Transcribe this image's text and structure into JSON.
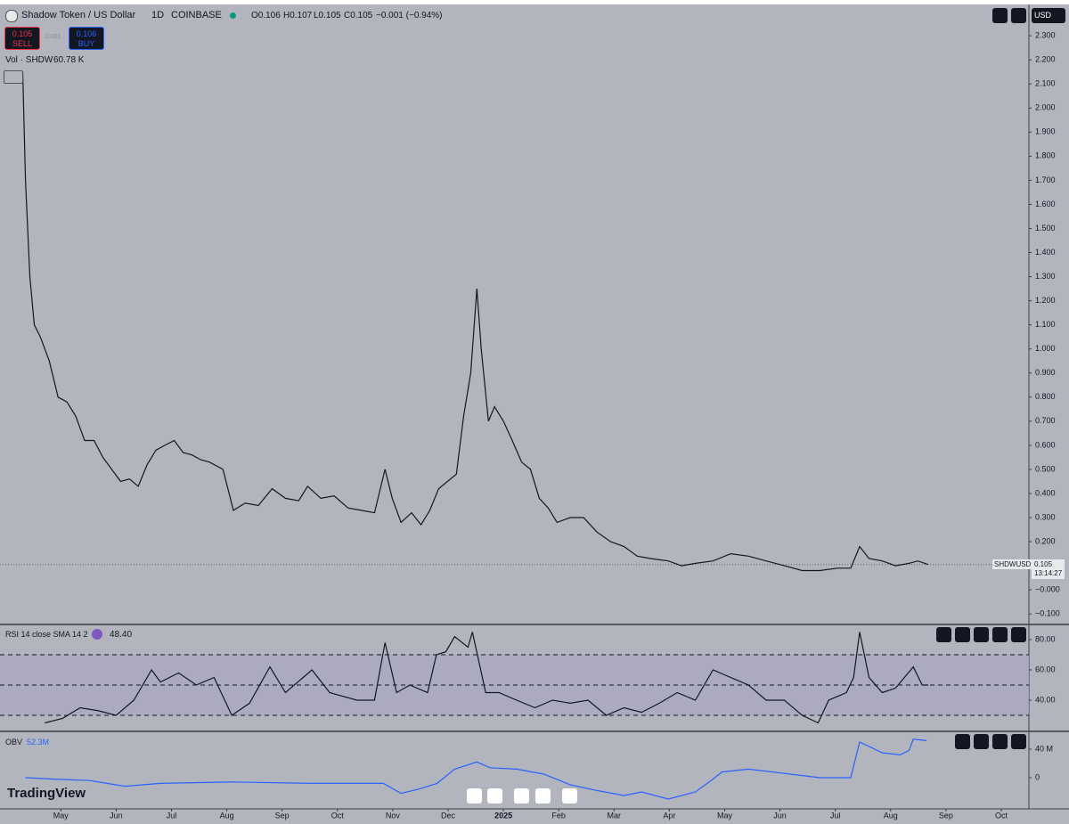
{
  "header": {
    "symbol": "Shadow Token / US Dollar",
    "interval": "1D",
    "exchange": "COINBASE",
    "open": "O0.106",
    "high": "H0.107",
    "low": "L0.105",
    "close": "C0.105",
    "change": "−0.001 (−0.94%)"
  },
  "trade": {
    "sell_price": "0.105",
    "sell": "SELL",
    "spread": "0.001",
    "buy_price": "0.106",
    "buy": "BUY"
  },
  "volume_legend": {
    "label": "Vol · SHDW",
    "value": "60.78 K"
  },
  "currency": "USD",
  "last_price": {
    "symbol": "SHDWUSD",
    "price": "0.105",
    "countdown": "13:14:27"
  },
  "brand": "TradingView",
  "chart_data": [
    {
      "type": "line",
      "color": "#131722",
      "x": [
        -0.69,
        -0.64,
        -0.56,
        -0.48,
        -0.37,
        -0.21,
        -0.05,
        0.11,
        0.27,
        0.43,
        0.6,
        0.76,
        0.92,
        1.08,
        1.24,
        1.4,
        1.56,
        1.72,
        1.88,
        2.05,
        2.21,
        2.37,
        2.53,
        2.69,
        2.93,
        3.12,
        3.33,
        3.57,
        3.82,
        4.06,
        4.3,
        4.46,
        4.7,
        4.94,
        5.19,
        5.43,
        5.67,
        5.86,
        5.99,
        6.15,
        6.34,
        6.51,
        6.67,
        6.83,
        6.99,
        7.15,
        7.28,
        7.41,
        7.52,
        7.6,
        7.73,
        7.84,
        8.0,
        8.16,
        8.33,
        8.49,
        8.65,
        8.81,
        8.97,
        9.21,
        9.45,
        9.69,
        9.94,
        10.18,
        10.42,
        10.66,
        10.98,
        11.22,
        11.47,
        11.79,
        12.11,
        12.43,
        12.75,
        13.08,
        13.4,
        13.72,
        14.04,
        14.28,
        14.44,
        14.61,
        14.85,
        15.09,
        15.33,
        15.49,
        15.68
      ],
      "values": [
        2.15,
        1.7,
        1.3,
        1.1,
        1.05,
        0.95,
        0.8,
        0.78,
        0.72,
        0.62,
        0.62,
        0.55,
        0.5,
        0.45,
        0.46,
        0.43,
        0.52,
        0.58,
        0.6,
        0.62,
        0.57,
        0.56,
        0.54,
        0.53,
        0.5,
        0.33,
        0.36,
        0.35,
        0.42,
        0.38,
        0.37,
        0.43,
        0.38,
        0.39,
        0.34,
        0.33,
        0.32,
        0.5,
        0.38,
        0.28,
        0.32,
        0.27,
        0.33,
        0.42,
        0.45,
        0.48,
        0.72,
        0.9,
        1.25,
        1.0,
        0.7,
        0.76,
        0.7,
        0.62,
        0.53,
        0.5,
        0.38,
        0.34,
        0.28,
        0.3,
        0.3,
        0.24,
        0.2,
        0.18,
        0.14,
        0.13,
        0.12,
        0.1,
        0.11,
        0.12,
        0.15,
        0.14,
        0.12,
        0.1,
        0.08,
        0.08,
        0.09,
        0.09,
        0.18,
        0.13,
        0.12,
        0.1,
        0.11,
        0.12,
        0.105
      ],
      "xlim": [
        -1.1,
        17.5
      ],
      "xticks": [
        {
          "value": 0,
          "label": "May"
        },
        {
          "value": 1,
          "label": "Jun"
        },
        {
          "value": 2,
          "label": "Jul"
        },
        {
          "value": 3,
          "label": "Aug"
        },
        {
          "value": 4,
          "label": "Sep"
        },
        {
          "value": 5,
          "label": "Oct"
        },
        {
          "value": 6,
          "label": "Nov"
        },
        {
          "value": 7,
          "label": "Dec"
        },
        {
          "value": 8,
          "label": "2025"
        },
        {
          "value": 9,
          "label": "Feb"
        },
        {
          "value": 10,
          "label": "Mar"
        },
        {
          "value": 11,
          "label": "Apr"
        },
        {
          "value": 12,
          "label": "May"
        },
        {
          "value": 13,
          "label": "Jun"
        },
        {
          "value": 14,
          "label": "Jul"
        },
        {
          "value": 15,
          "label": "Aug"
        },
        {
          "value": 16,
          "label": "Sep"
        },
        {
          "value": 17,
          "label": "Oct"
        }
      ],
      "ylim": [
        -0.14,
        2.43
      ],
      "yticks": [
        {
          "value": 2.3,
          "label": "2.300"
        },
        {
          "value": 2.2,
          "label": "2.200"
        },
        {
          "value": 2.1,
          "label": "2.100"
        },
        {
          "value": 2.0,
          "label": "2.000"
        },
        {
          "value": 1.9,
          "label": "1.900"
        },
        {
          "value": 1.8,
          "label": "1.800"
        },
        {
          "value": 1.7,
          "label": "1.700"
        },
        {
          "value": 1.6,
          "label": "1.600"
        },
        {
          "value": 1.5,
          "label": "1.500"
        },
        {
          "value": 1.4,
          "label": "1.400"
        },
        {
          "value": 1.3,
          "label": "1.300"
        },
        {
          "value": 1.2,
          "label": "1.200"
        },
        {
          "value": 1.1,
          "label": "1.100"
        },
        {
          "value": 1.0,
          "label": "1.000"
        },
        {
          "value": 0.9,
          "label": "0.900"
        },
        {
          "value": 0.8,
          "label": "0.800"
        },
        {
          "value": 0.7,
          "label": "0.700"
        },
        {
          "value": 0.6,
          "label": "0.600"
        },
        {
          "value": 0.5,
          "label": "0.500"
        },
        {
          "value": 0.4,
          "label": "0.400"
        },
        {
          "value": 0.3,
          "label": "0.300"
        },
        {
          "value": 0.2,
          "label": "0.200"
        },
        {
          "value": 0.1,
          "label": "0.100"
        },
        {
          "value": 0,
          "label": "−0.000"
        },
        {
          "value": -0.1,
          "label": "−0.100"
        }
      ]
    },
    {
      "type": "line",
      "title": "RSI 14 close SMA 14 2",
      "last_value": "48.40",
      "color": "#131722",
      "band_color": "#a9a7c2",
      "x": [
        -0.29,
        0.03,
        0.35,
        0.68,
        1.0,
        1.32,
        1.64,
        1.8,
        2.13,
        2.45,
        2.77,
        3.09,
        3.41,
        3.78,
        4.06,
        4.38,
        4.54,
        4.86,
        5.35,
        5.67,
        5.86,
        6.07,
        6.31,
        6.63,
        6.79,
        6.96,
        7.12,
        7.36,
        7.44,
        7.68,
        7.92,
        8.24,
        8.57,
        8.89,
        9.21,
        9.53,
        9.86,
        10.18,
        10.5,
        10.82,
        11.14,
        11.47,
        11.79,
        12.11,
        12.43,
        12.75,
        13.08,
        13.4,
        13.69,
        13.88,
        14.2,
        14.33,
        14.44,
        14.61,
        14.85,
        15.09,
        15.41,
        15.57,
        15.68
      ],
      "values": [
        25,
        28,
        35,
        33,
        30,
        40,
        60,
        52,
        58,
        50,
        55,
        30,
        38,
        62,
        45,
        55,
        60,
        45,
        40,
        40,
        78,
        45,
        50,
        45,
        70,
        72,
        82,
        75,
        85,
        45,
        45,
        40,
        35,
        40,
        38,
        40,
        30,
        35,
        32,
        38,
        45,
        40,
        60,
        55,
        50,
        40,
        40,
        30,
        25,
        40,
        45,
        55,
        85,
        55,
        45,
        48,
        62,
        50,
        50
      ],
      "ylim": [
        20,
        88.8
      ],
      "yticks": [
        {
          "value": 80,
          "label": "80.00"
        },
        {
          "value": 60,
          "label": "60.00"
        },
        {
          "value": 40,
          "label": "40.00"
        }
      ],
      "levels": [
        70,
        50,
        30
      ]
    },
    {
      "type": "line",
      "title": "OBV",
      "last_value": "52.3M",
      "color": "#2962ff",
      "x": [
        -0.64,
        -0.13,
        0.52,
        1.16,
        1.8,
        3.09,
        4.54,
        5.83,
        6.15,
        6.47,
        6.8,
        7.12,
        7.52,
        7.76,
        8.24,
        8.73,
        9.21,
        9.69,
        10.18,
        10.5,
        10.98,
        11.47,
        11.79,
        11.95,
        12.43,
        13.08,
        13.72,
        14.28,
        14.44,
        14.85,
        15.17,
        15.33,
        15.41,
        15.65
      ],
      "values": [
        0,
        -2,
        -4,
        -12,
        -8,
        -6,
        -8,
        -8,
        -22,
        -16,
        -8,
        12,
        22,
        14,
        12,
        5,
        -10,
        -18,
        -25,
        -20,
        -30,
        -20,
        -2,
        8,
        12,
        6,
        0,
        0,
        50,
        35,
        32,
        38,
        54,
        52
      ],
      "ylim": [
        -42.5,
        63.75
      ],
      "yticks": [
        {
          "value": 40,
          "label": "40 M"
        },
        0
      ]
    }
  ]
}
